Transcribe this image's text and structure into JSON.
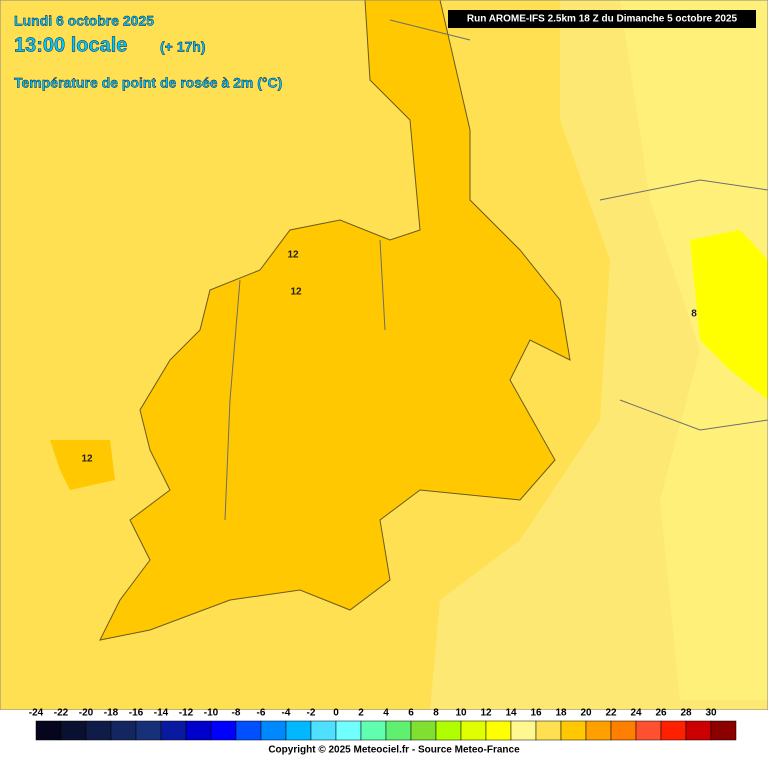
{
  "header": {
    "date": "Lundi 6 octobre 2025",
    "time": "13:00 locale",
    "offset": "(+ 17h)",
    "parameter": "Température de point de rosée à 2m (°C)"
  },
  "run_info": "Run AROME-IFS 2.5km 18 Z du Dimanche 5 octobre 2025",
  "legend": {
    "ticks": [
      -24,
      -22,
      -20,
      -18,
      -16,
      -14,
      -12,
      -10,
      -8,
      -6,
      -4,
      -2,
      0,
      2,
      4,
      6,
      8,
      10,
      12,
      14,
      16,
      18,
      20,
      22,
      24,
      26,
      28,
      30
    ],
    "colors": [
      "#05051e",
      "#0a1030",
      "#101c48",
      "#142660",
      "#183078",
      "#0a1aa0",
      "#0000cc",
      "#0000ff",
      "#0050ff",
      "#0088ff",
      "#00b8ff",
      "#50e0ff",
      "#70ffff",
      "#60ffb0",
      "#60f070",
      "#80e030",
      "#b0ff00",
      "#e0ff00",
      "#ffff00",
      "#fff890",
      "#ffe050",
      "#ffc800",
      "#ffa000",
      "#ff8000",
      "#ff5030",
      "#ff2000",
      "#cc0000",
      "#8c0000"
    ]
  },
  "contour_labels": [
    "12",
    "12",
    "12",
    "8"
  ],
  "copyright": "Copyright © 2025 Meteociel.fr - Source Meteo-France"
}
